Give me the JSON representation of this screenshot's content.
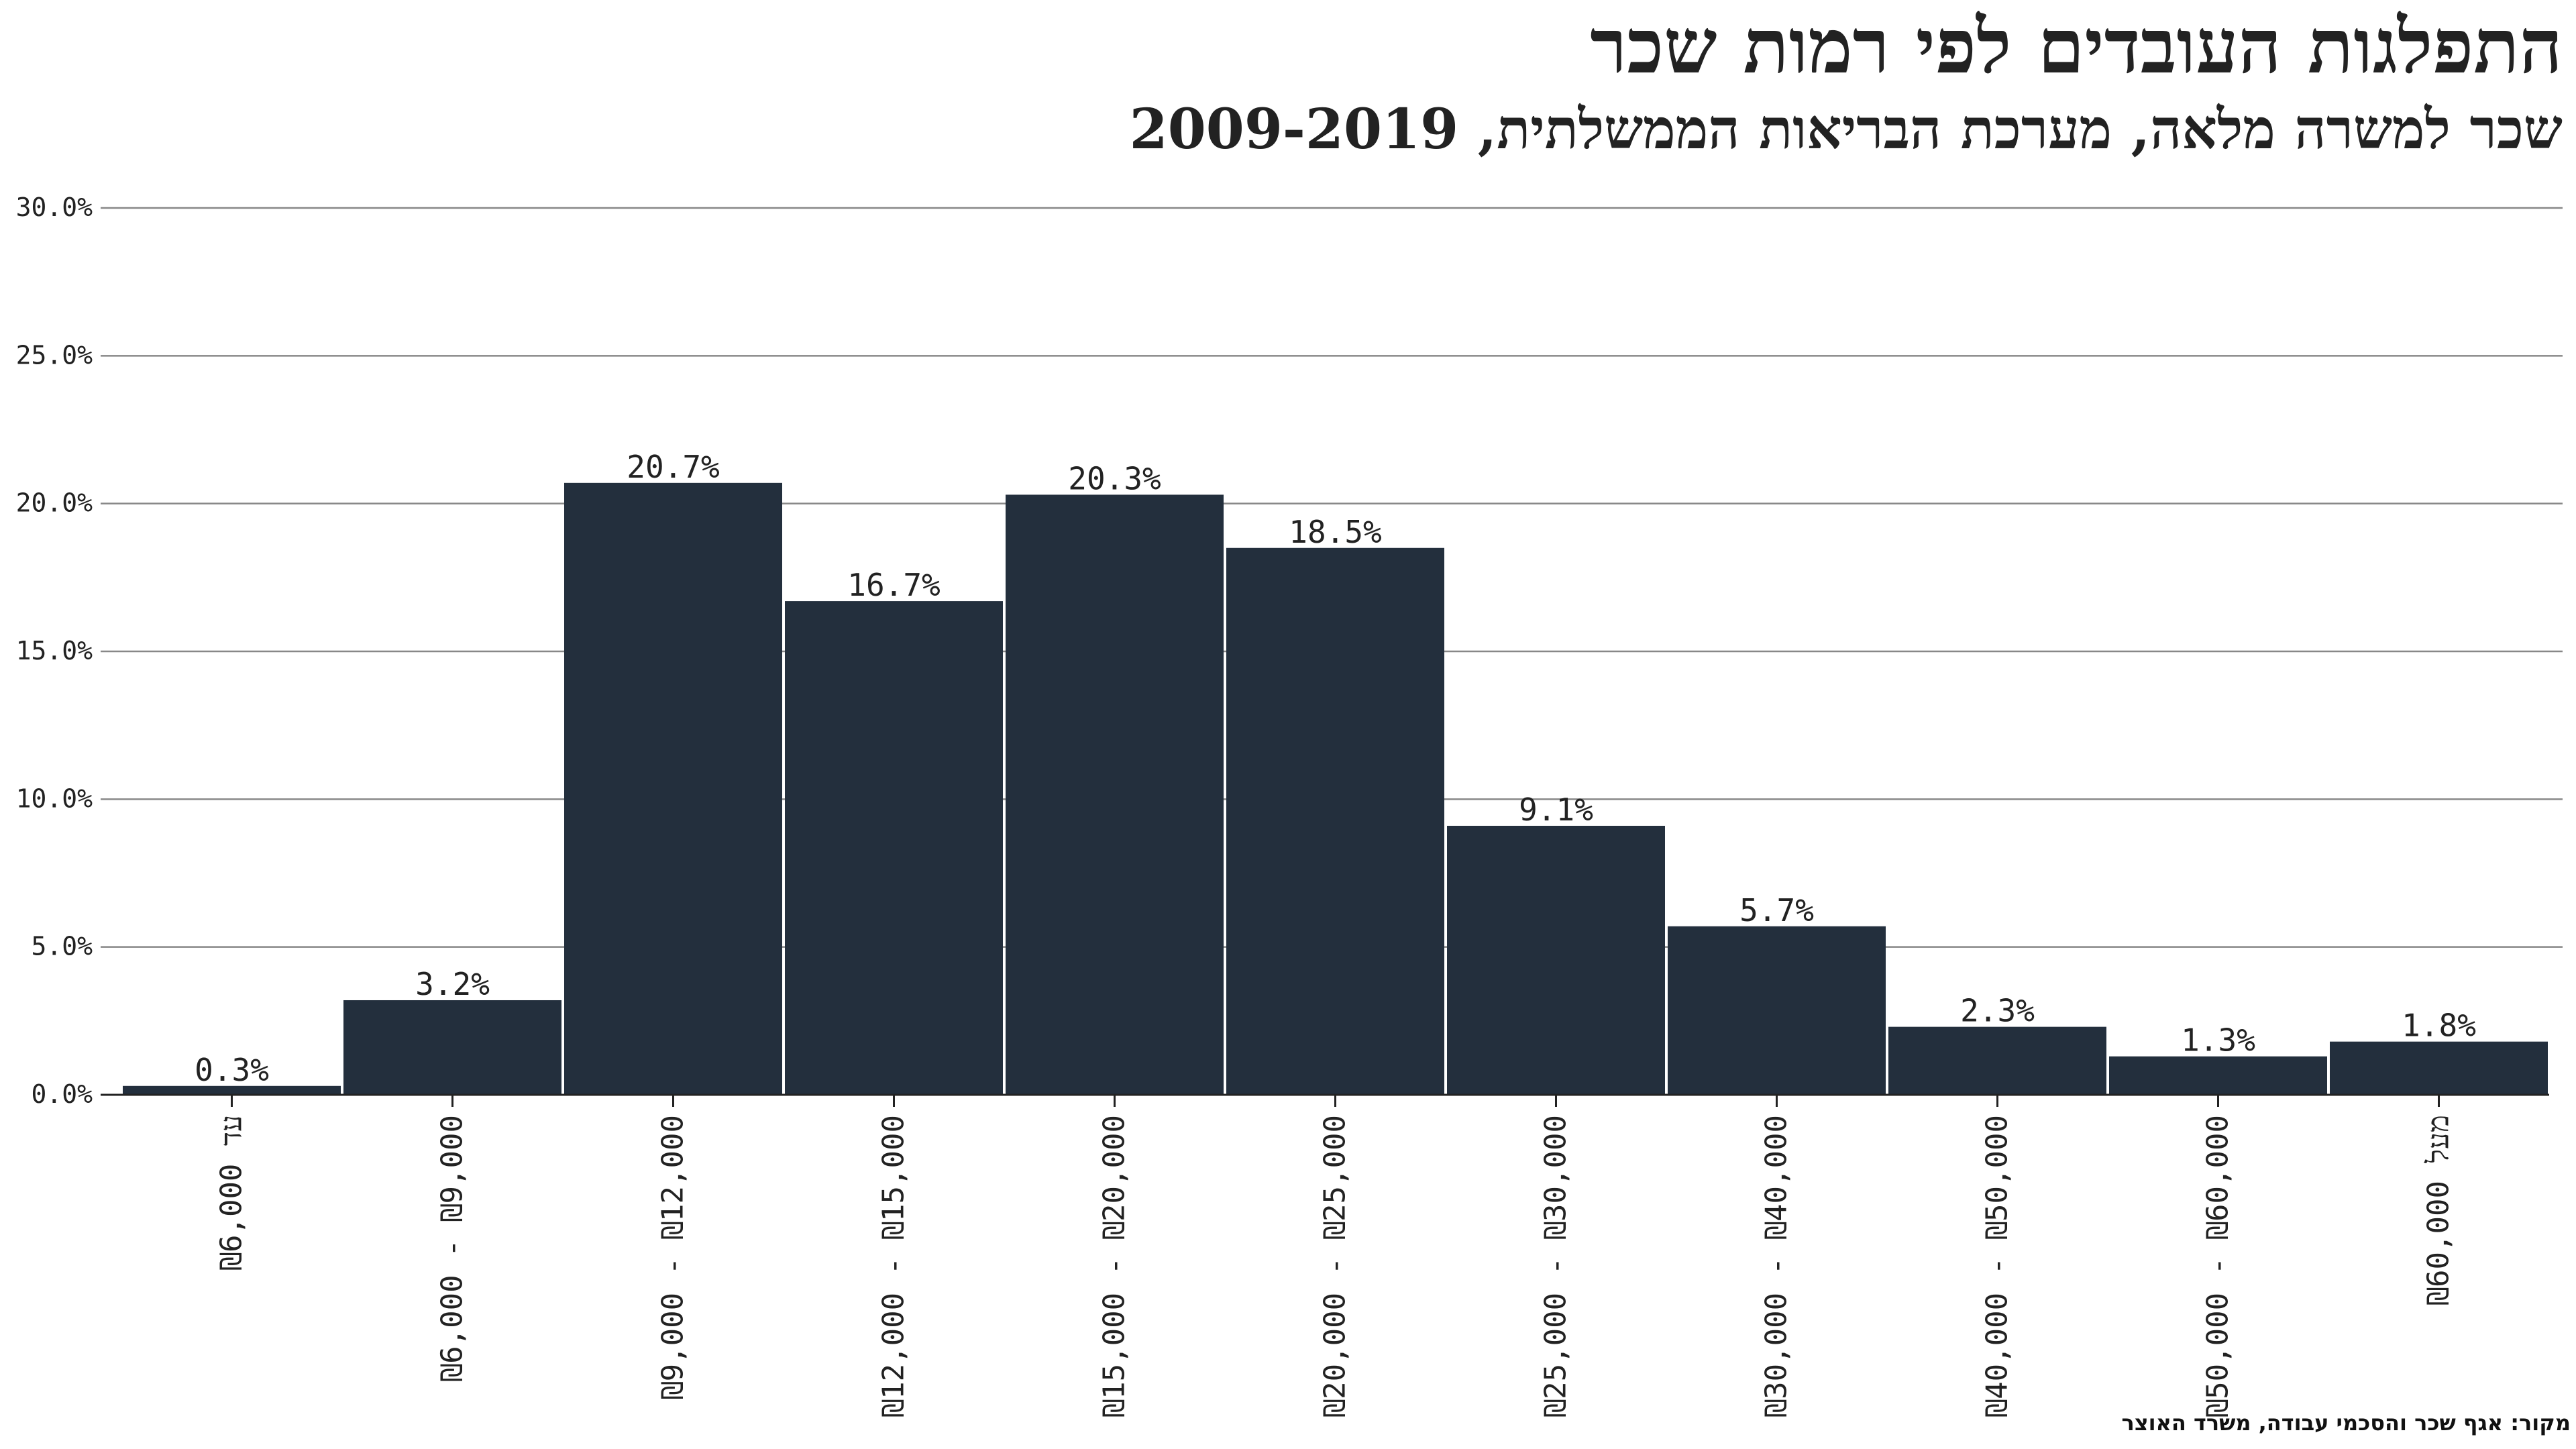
{
  "chart_data": {
    "type": "bar",
    "title": "התפלגות העובדים לפי רמות שכר",
    "subtitle": "שכר למשרה מלאה, מערכת הבריאות הממשלתית, 2009-2019",
    "source": "מקור: אגף שכר והסכמי עבודה, משרד האוצר",
    "categories": [
      "עד ₪6,000",
      "₪6,000 - ₪9,000",
      "₪9,000 - ₪12,000",
      "₪12,000 - ₪15,000",
      "₪15,000 - ₪20,000",
      "₪20,000 - ₪25,000",
      "₪25,000 - ₪30,000",
      "₪30,000 - ₪40,000",
      "₪40,000 - ₪50,000",
      "₪50,000 - ₪60,000",
      "מעל ₪60,000"
    ],
    "values": [
      0.3,
      3.2,
      20.7,
      16.7,
      20.3,
      18.5,
      9.1,
      5.7,
      2.3,
      1.3,
      1.8
    ],
    "value_labels": [
      "0.3%",
      "3.2%",
      "20.7%",
      "16.7%",
      "20.3%",
      "18.5%",
      "9.1%",
      "5.7%",
      "2.3%",
      "1.3%",
      "1.8%"
    ],
    "yticks": [
      0,
      5,
      10,
      15,
      20,
      25,
      30
    ],
    "ytick_labels": [
      "0.0%",
      "5.0%",
      "10.0%",
      "15.0%",
      "20.0%",
      "25.0%",
      "30.0%"
    ],
    "ylim": [
      0,
      30
    ],
    "xlabel": "",
    "ylabel": "",
    "grid": true,
    "bar_color": "#232f3d",
    "grid_color": "#888888"
  }
}
